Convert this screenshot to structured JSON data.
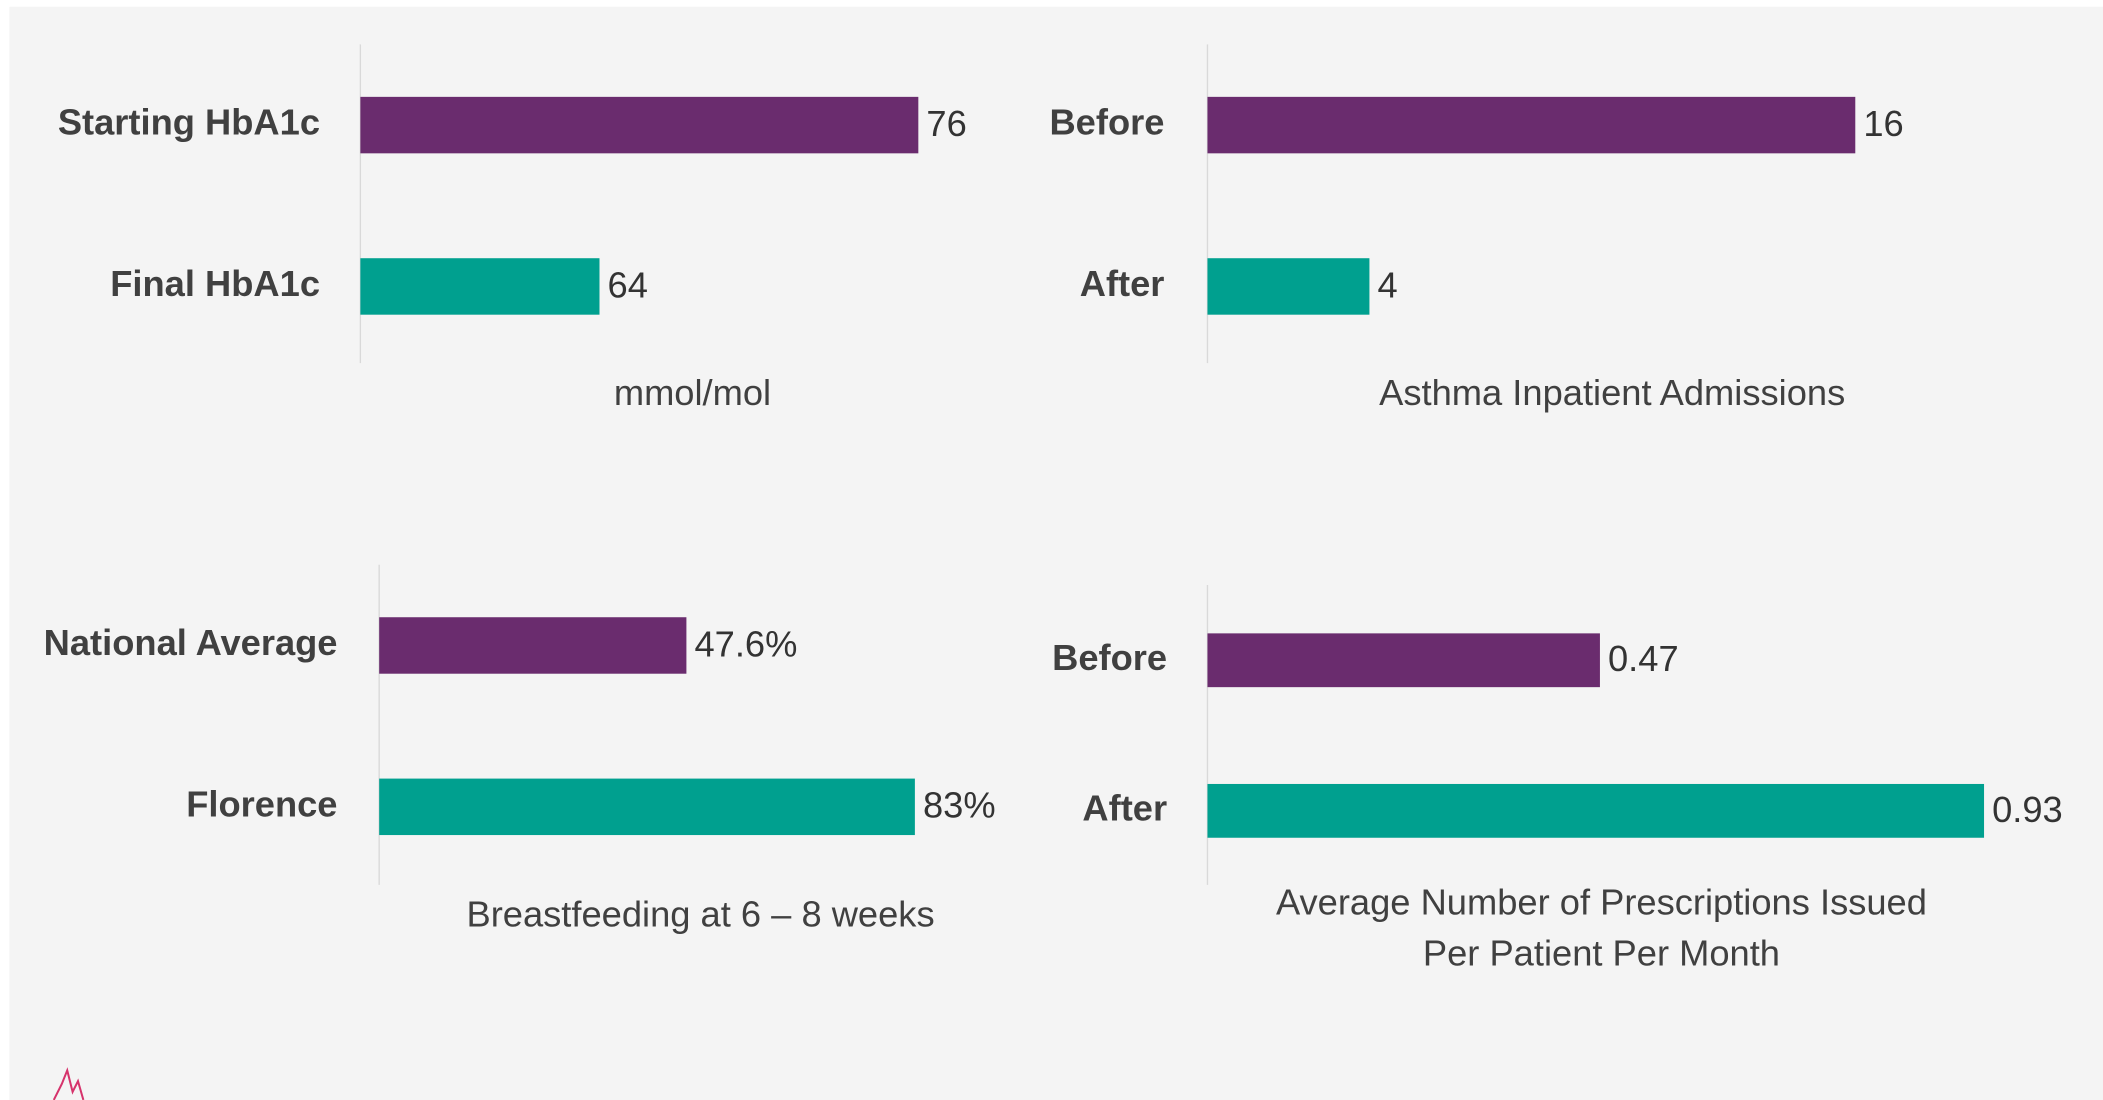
{
  "chart_data": [
    {
      "type": "bar",
      "orientation": "horizontal",
      "categories": [
        "Starting HbA1c",
        "Final HbA1c"
      ],
      "values": [
        76,
        64
      ],
      "colors": [
        "#6a2c6e",
        "#00a08f"
      ],
      "xlim": [
        55,
        80
      ],
      "xlabel": [
        "mmol/mol"
      ]
    },
    {
      "type": "bar",
      "orientation": "horizontal",
      "categories": [
        "Before",
        "After"
      ],
      "values": [
        16,
        4
      ],
      "colors": [
        "#6a2c6e",
        "#00a08f"
      ],
      "xlim": [
        0,
        18
      ],
      "xlabel": [
        "Asthma Inpatient Admissions"
      ]
    },
    {
      "type": "bar",
      "orientation": "horizontal",
      "categories": [
        "National Average",
        "Florence"
      ],
      "values": [
        47.6,
        83
      ],
      "value_labels": [
        "47.6%",
        "83%"
      ],
      "colors": [
        "#6a2c6e",
        "#00a08f"
      ],
      "xlim": [
        0,
        90
      ],
      "xlabel": [
        "Breastfeeding at 6 – 8 weeks"
      ]
    },
    {
      "type": "bar",
      "orientation": "horizontal",
      "categories": [
        "Before",
        "After"
      ],
      "values": [
        0.47,
        0.93
      ],
      "colors": [
        "#6a2c6e",
        "#00a08f"
      ],
      "xlim": [
        0,
        1
      ],
      "xlabel": [
        "Average Number of Prescriptions Issued",
        "Per Patient Per Month"
      ]
    }
  ]
}
